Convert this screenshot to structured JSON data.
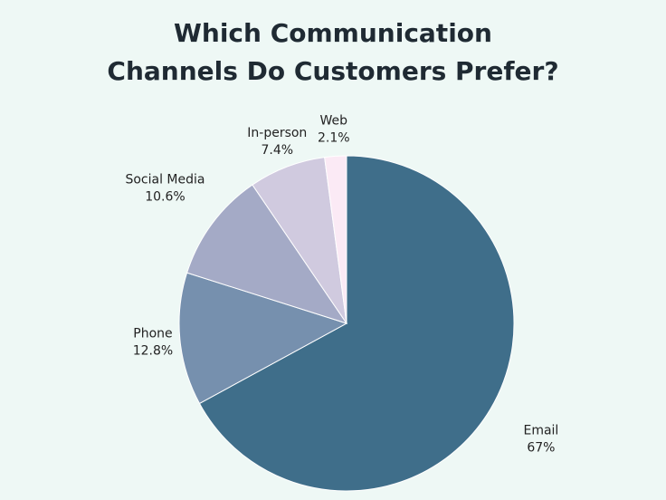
{
  "chart_data": {
    "type": "pie",
    "title": "Which Communication Channels Do Customers Prefer?",
    "categories": [
      "Email",
      "Phone",
      "Social Media",
      "In-person",
      "Web"
    ],
    "values": [
      67,
      12.8,
      10.6,
      7.4,
      2.1
    ],
    "value_labels": [
      "67%",
      "12.8%",
      "10.6%",
      "7.4%",
      "2.1%"
    ],
    "colors": [
      "#3f6e8a",
      "#7690ae",
      "#a4aac6",
      "#d0cadf",
      "#fbeaf5"
    ]
  }
}
